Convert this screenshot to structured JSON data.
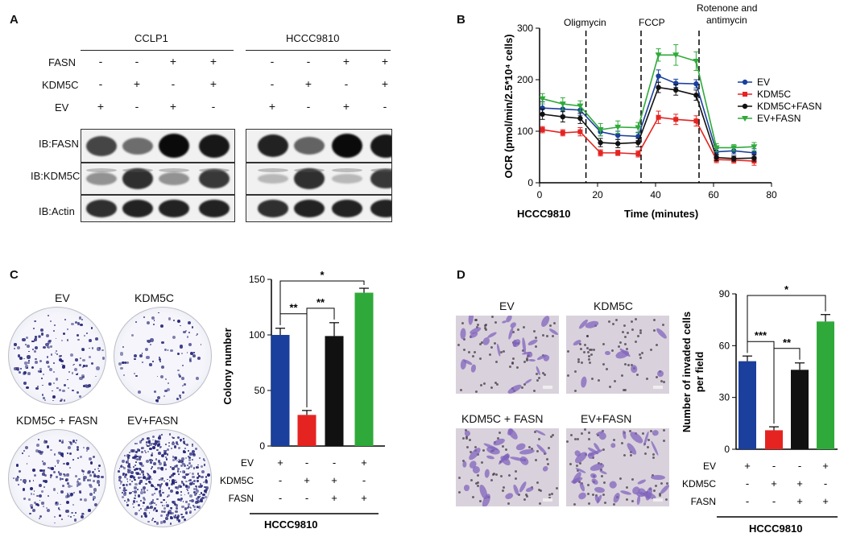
{
  "panels": {
    "a": "A",
    "b": "B",
    "c": "C",
    "d": "D"
  },
  "panel_a": {
    "groups": [
      "CCLP1",
      "HCCC9810"
    ],
    "row_labels": [
      "FASN",
      "KDM5C",
      "EV"
    ],
    "signs": [
      [
        "-",
        "-",
        "+",
        "+"
      ],
      [
        "-",
        "+",
        "-",
        "+"
      ],
      [
        "+",
        "-",
        "+",
        "-"
      ]
    ],
    "blot_labels": [
      "IB:FASN",
      "IB:KDM5C",
      "IB:Actin"
    ]
  },
  "panel_b": {
    "annotations": [
      "Oligmycin",
      "FCCP",
      "Rotenone and",
      "antimycin"
    ],
    "cell_line": "HCCC9810"
  },
  "panel_c": {
    "dish_labels": [
      "EV",
      "KDM5C",
      "KDM5C + FASN",
      "EV+FASN"
    ],
    "cell_line": "HCCC9810"
  },
  "panel_d": {
    "image_labels": [
      "EV",
      "KDM5C",
      "KDM5C + FASN",
      "EV+FASN"
    ],
    "cell_line": "HCCC9810"
  },
  "condition_table": {
    "rows": [
      "EV",
      "KDM5C",
      "FASN"
    ],
    "signs": [
      [
        "+",
        "-",
        "-",
        "+"
      ],
      [
        "-",
        "+",
        "+",
        "-"
      ],
      [
        "-",
        "-",
        "+",
        "+"
      ]
    ]
  },
  "colors": {
    "EV": "#1a3f9c",
    "KDM5C": "#e52421",
    "KDM5C+FASN": "#111111",
    "EV+FASN": "#2faa3a"
  },
  "chart_data": [
    {
      "type": "line",
      "ylabel": "OCR (pmol/min/2.5*10⁴ cells)",
      "xlabel": "Time (minutes)",
      "xlim": [
        0,
        80
      ],
      "ylim": [
        0,
        300
      ],
      "xticks": [
        0,
        20,
        40,
        60,
        80
      ],
      "yticks": [
        0,
        100,
        200,
        300
      ],
      "vlines": [
        16,
        35,
        55
      ],
      "legend_position": "right",
      "x": [
        1,
        8,
        14,
        21,
        27,
        34,
        41,
        47,
        54,
        61,
        67,
        74
      ],
      "series": [
        {
          "name": "EV",
          "color": "#1a3f9c",
          "marker": "circle",
          "values": [
            145,
            143,
            141,
            99,
            92,
            90,
            207,
            193,
            192,
            60,
            62,
            58
          ],
          "errors": [
            12,
            12,
            10,
            8,
            8,
            8,
            12,
            8,
            8,
            6,
            6,
            8
          ]
        },
        {
          "name": "KDM5C",
          "color": "#e52421",
          "marker": "square",
          "values": [
            103,
            97,
            99,
            58,
            58,
            56,
            127,
            123,
            120,
            45,
            44,
            42
          ],
          "errors": [
            6,
            6,
            8,
            6,
            5,
            6,
            12,
            10,
            10,
            6,
            6,
            8
          ]
        },
        {
          "name": "KDM5C+FASN",
          "color": "#111111",
          "marker": "circle",
          "values": [
            133,
            128,
            125,
            78,
            76,
            78,
            185,
            180,
            170,
            49,
            47,
            48
          ],
          "errors": [
            10,
            10,
            10,
            8,
            8,
            8,
            10,
            10,
            10,
            6,
            5,
            6
          ]
        },
        {
          "name": "EV+FASN",
          "color": "#2faa3a",
          "marker": "triangle-down",
          "values": [
            163,
            153,
            149,
            103,
            108,
            107,
            248,
            248,
            236,
            68,
            68,
            70
          ],
          "errors": [
            10,
            12,
            10,
            12,
            12,
            10,
            12,
            20,
            18,
            8,
            6,
            8
          ]
        }
      ]
    },
    {
      "type": "bar",
      "ylabel": "Colony number",
      "categories": [
        "EV",
        "KDM5C",
        "KDM5C+FASN",
        "EV+FASN"
      ],
      "values": [
        100,
        28,
        99,
        138
      ],
      "errors": [
        6,
        4,
        12,
        4
      ],
      "colors": [
        "#1a3f9c",
        "#e52421",
        "#111111",
        "#2faa3a"
      ],
      "ylim": [
        0,
        150
      ],
      "yticks": [
        0,
        50,
        100,
        150
      ],
      "significance": [
        {
          "from": 0,
          "to": 1,
          "label": "**"
        },
        {
          "from": 1,
          "to": 2,
          "label": "**"
        },
        {
          "from": 0,
          "to": 3,
          "label": "*"
        }
      ]
    },
    {
      "type": "bar",
      "ylabel": "Number of invaded cells per field",
      "ylabel_lines": [
        "Number of invaded cells",
        "per field"
      ],
      "categories": [
        "EV",
        "KDM5C",
        "KDM5C+FASN",
        "EV+FASN"
      ],
      "values": [
        51,
        11,
        46,
        74
      ],
      "errors": [
        3,
        2,
        4,
        4
      ],
      "colors": [
        "#1a3f9c",
        "#e52421",
        "#111111",
        "#2faa3a"
      ],
      "ylim": [
        0,
        90
      ],
      "yticks": [
        0,
        30,
        60,
        90
      ],
      "significance": [
        {
          "from": 0,
          "to": 1,
          "label": "***"
        },
        {
          "from": 1,
          "to": 2,
          "label": "**"
        },
        {
          "from": 0,
          "to": 3,
          "label": "*"
        }
      ]
    }
  ]
}
